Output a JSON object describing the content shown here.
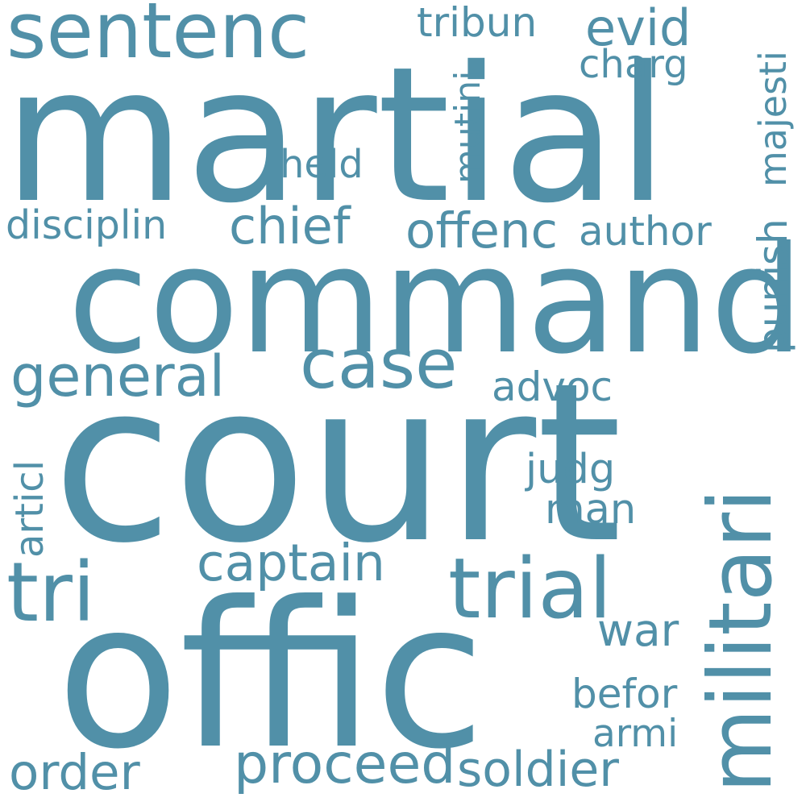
{
  "colors": {
    "text": "#5190A8",
    "background": "#ffffff"
  },
  "words": {
    "court": "court",
    "martial": "martial",
    "command": "command",
    "offic": "offic",
    "militari": "militari",
    "sentenc": "sentenc",
    "trial": "trial",
    "tri": "tri",
    "case": "case",
    "general": "general",
    "captain": "captain",
    "proceed": "proceed",
    "soldier": "soldier",
    "order": "order",
    "chief": "chief",
    "offenc": "offenc",
    "author": "author",
    "disciplin": "disciplin",
    "held": "held",
    "evid": "evid",
    "charg": "charg",
    "tribun": "tribun",
    "mutini": "mutini",
    "majesti": "majesti",
    "punish": "punish",
    "advoc": "advoc",
    "judg": "judg",
    "man": "man",
    "war": "war",
    "befor": "befor",
    "armi": "armi",
    "articl": "articl"
  }
}
